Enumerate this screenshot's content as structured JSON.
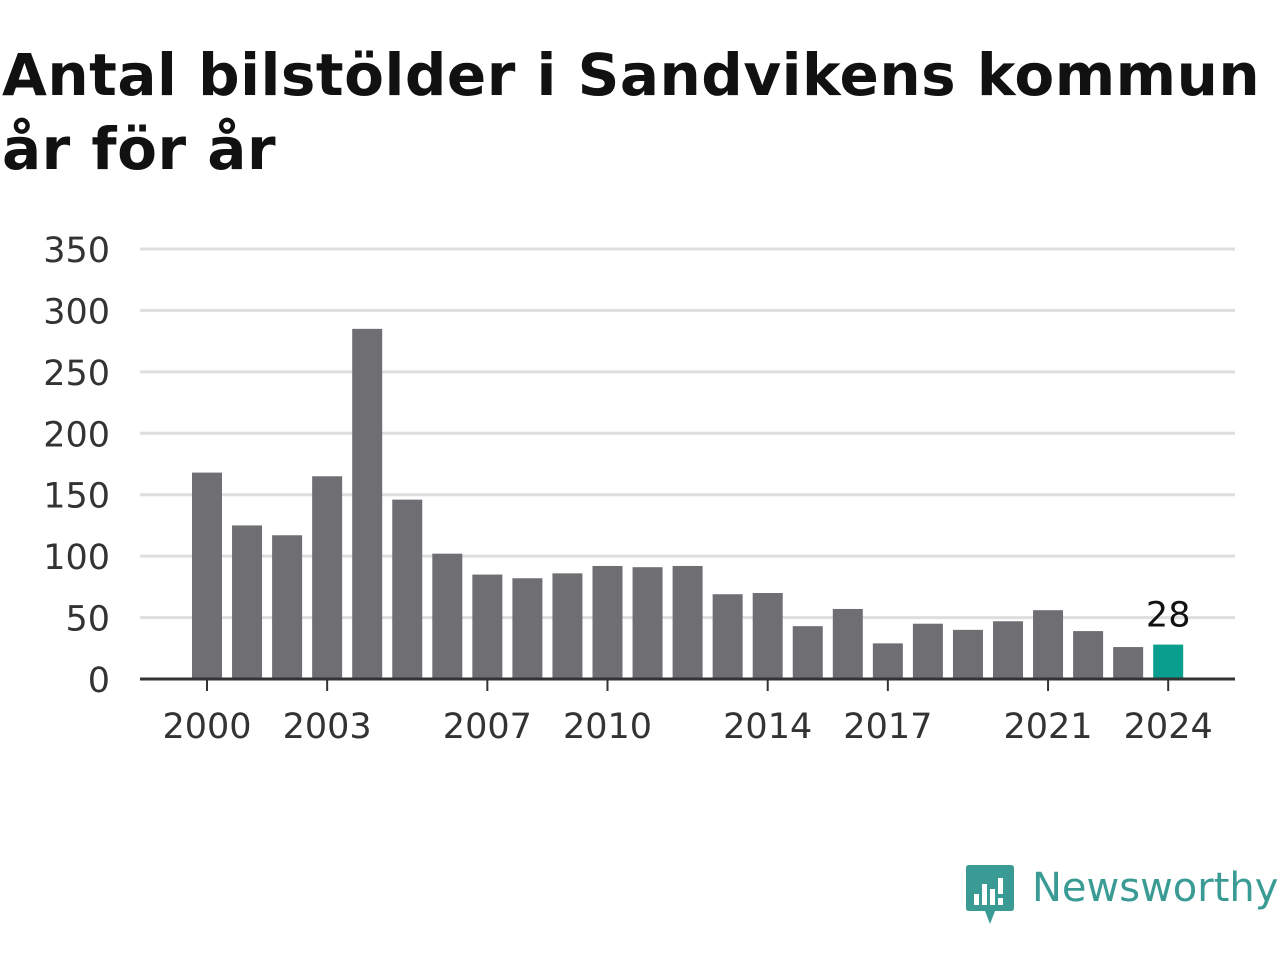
{
  "title_line1": "Antal bilstölder i Sandvikens kommun",
  "title_line2": "år för år",
  "brand": {
    "name": "Newsworthy",
    "icon": "newsworthy-logo-icon",
    "color": "#3a9b95"
  },
  "chart_data": {
    "type": "bar",
    "title": "Antal bilstölder i Sandvikens kommun år för år",
    "xlabel": "",
    "ylabel": "",
    "categories": [
      "2000",
      "2001",
      "2002",
      "2003",
      "2004",
      "2005",
      "2006",
      "2007",
      "2008",
      "2009",
      "2010",
      "2011",
      "2012",
      "2013",
      "2014",
      "2015",
      "2016",
      "2017",
      "2018",
      "2019",
      "2020",
      "2021",
      "2022",
      "2023",
      "2024"
    ],
    "values": [
      168,
      125,
      117,
      165,
      285,
      146,
      102,
      85,
      82,
      86,
      92,
      91,
      92,
      69,
      70,
      43,
      57,
      29,
      45,
      40,
      47,
      56,
      39,
      26,
      28
    ],
    "x_tick_labels": [
      "2000",
      "2003",
      "2007",
      "2010",
      "2014",
      "2017",
      "2021",
      "2024"
    ],
    "y_ticks": [
      0,
      50,
      100,
      150,
      200,
      250,
      300,
      350
    ],
    "ylim": [
      0,
      350
    ],
    "grid": true,
    "highlight": {
      "category": "2024",
      "label": "28",
      "color": "#0a9e8e"
    },
    "bar_color": "#6f6e73"
  }
}
